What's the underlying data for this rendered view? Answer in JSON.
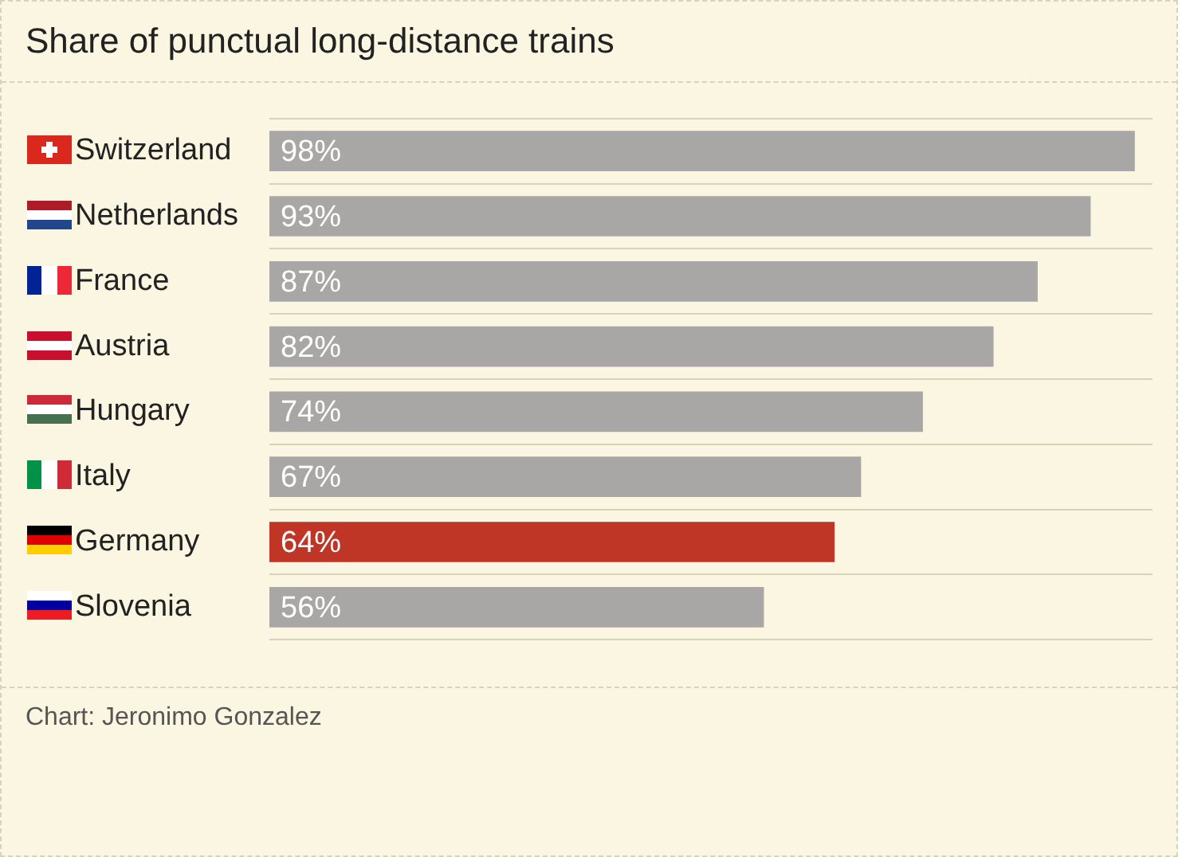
{
  "chart_data": {
    "type": "bar",
    "orientation": "horizontal",
    "title": "Share of punctual long-distance trains",
    "categories": [
      "Switzerland",
      "Netherlands",
      "France",
      "Austria",
      "Hungary",
      "Italy",
      "Germany",
      "Slovenia"
    ],
    "values": [
      98,
      93,
      87,
      82,
      74,
      67,
      64,
      56
    ],
    "colors": [
      "#a8a7a5",
      "#a8a7a5",
      "#a8a7a5",
      "#a8a7a5",
      "#a8a7a5",
      "#a8a7a5",
      "#bf3626",
      "#a8a7a5"
    ],
    "value_labels": [
      "98%",
      "93%",
      "87%",
      "82%",
      "74%",
      "67%",
      "64%",
      "56%"
    ],
    "grid": "y",
    "legend": false,
    "tick_labels": "y",
    "annotations": [
      "Chart: Jeronimo Gonzalez"
    ]
  }
}
